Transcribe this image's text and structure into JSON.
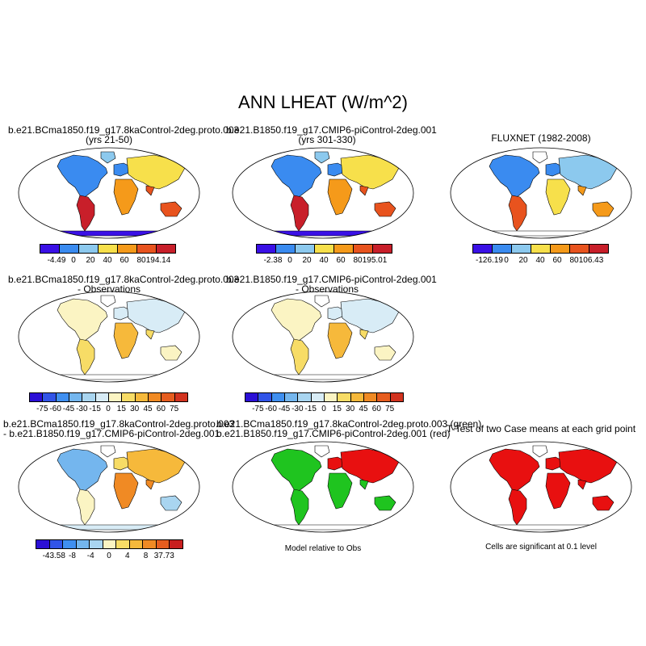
{
  "figure": {
    "title": "ANN LHEAT (W/m^2)"
  },
  "panels": [
    {
      "title_line1": "b.e21.BCma1850.f19_g17.8kaControl-2deg.proto.003",
      "title_line2": "(yrs 21-50)",
      "colorbar": {
        "colors": [
          "#3a10e6",
          "#3a8bf0",
          "#8cc9ee",
          "#f7e04b",
          "#f59a1a",
          "#e8531e",
          "#c81f2a"
        ],
        "labels": [
          "-4.49",
          "0",
          "20",
          "40",
          "60",
          "80",
          "194.14"
        ]
      }
    },
    {
      "title_line1": "b.e21.B1850.f19_g17.CMIP6-piControl-2deg.001",
      "title_line2": "(yrs 301-330)",
      "colorbar": {
        "colors": [
          "#3a10e6",
          "#3a8bf0",
          "#8cc9ee",
          "#f7e04b",
          "#f59a1a",
          "#e8531e",
          "#c81f2a"
        ],
        "labels": [
          "-2.38",
          "0",
          "20",
          "40",
          "60",
          "80",
          "195.01"
        ]
      }
    },
    {
      "title_line1": "FLUXNET (1982-2008)",
      "title_line2": "",
      "colorbar": {
        "colors": [
          "#3a10e6",
          "#3a8bf0",
          "#8cc9ee",
          "#f7e04b",
          "#f59a1a",
          "#e8531e",
          "#c81f2a"
        ],
        "labels": [
          "-126.19",
          "0",
          "20",
          "40",
          "60",
          "80",
          "106.43"
        ]
      }
    },
    {
      "title_line1": "b.e21.BCma1850.f19_g17.8kaControl-2deg.proto.003",
      "title_line2": "- Observations",
      "colorbar": {
        "colors": [
          "#2b0fd6",
          "#3154e8",
          "#3f8ff0",
          "#74b6ee",
          "#a9d5f0",
          "#d8ecf6",
          "#fbf4c3",
          "#f7dc66",
          "#f6b93b",
          "#f08a24",
          "#e65d1f",
          "#d2331f"
        ],
        "labels": [
          "-75",
          "-60",
          "-45",
          "-30",
          "-15",
          "0",
          "15",
          "30",
          "45",
          "60",
          "75"
        ]
      }
    },
    {
      "title_line1": "b.e21.B1850.f19_g17.CMIP6-piControl-2deg.001",
      "title_line2": "- Observations",
      "colorbar": {
        "colors": [
          "#2b0fd6",
          "#3154e8",
          "#3f8ff0",
          "#74b6ee",
          "#a9d5f0",
          "#d8ecf6",
          "#fbf4c3",
          "#f7dc66",
          "#f6b93b",
          "#f08a24",
          "#e65d1f",
          "#d2331f"
        ],
        "labels": [
          "-75",
          "-60",
          "-45",
          "-30",
          "-15",
          "0",
          "15",
          "30",
          "45",
          "60",
          "75"
        ]
      }
    },
    {
      "title_line1": "b.e21.BCma1850.f19_g17.8kaControl-2deg.proto.003",
      "title_line2": "- b.e21.B1850.f19_g17.CMIP6-piControl-2deg.001",
      "colorbar": {
        "colors": [
          "#2b0fd6",
          "#3154e8",
          "#3f8ff0",
          "#74b6ee",
          "#a9d5f0",
          "#fbf4c3",
          "#f7dc66",
          "#f6b93b",
          "#f08a24",
          "#e65d1f",
          "#c81f1f"
        ],
        "labels": [
          "-43.58",
          "-8",
          "-4",
          "0",
          "4",
          "8",
          "37.73"
        ]
      }
    },
    {
      "title_line1": "b.e21.BCma1850.f19_g17.8kaControl-2deg.proto.003 (green)",
      "title_line2": "b.e21.B1850.f19_g17.CMIP6-piControl-2deg.001 (red)",
      "note": "Model relative to Obs"
    },
    {
      "title_line1": "T-Test of two Case means at each grid point",
      "title_line2": "",
      "note": "Cells are significant at 0.1 level"
    }
  ]
}
